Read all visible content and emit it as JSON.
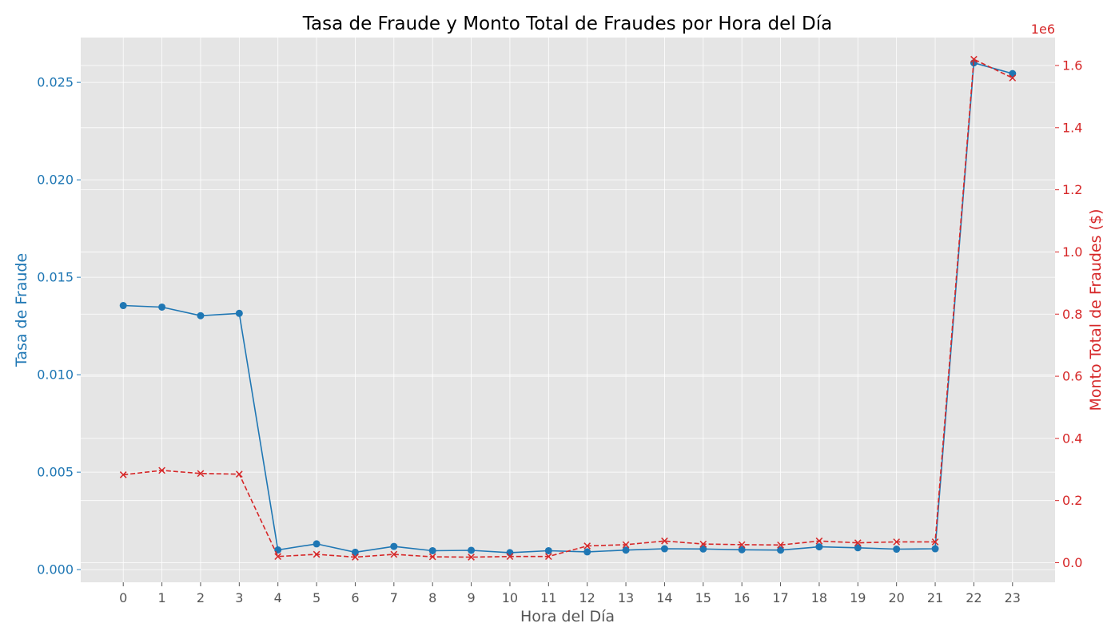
{
  "chart_data": {
    "type": "line",
    "title": "Tasa de Fraude y Monto Total de Fraudes por Hora del Día",
    "xlabel": "Hora del Día",
    "ylabel_left": "Tasa de Fraude",
    "ylabel_right": "Monto Total de Fraudes ($)",
    "right_axis_offset_label": "1e6",
    "x": [
      0,
      1,
      2,
      3,
      4,
      5,
      6,
      7,
      8,
      9,
      10,
      11,
      12,
      13,
      14,
      15,
      16,
      17,
      18,
      19,
      20,
      21,
      22,
      23
    ],
    "x_tick_labels": [
      "0",
      "1",
      "2",
      "3",
      "4",
      "5",
      "6",
      "7",
      "8",
      "9",
      "10",
      "11",
      "12",
      "13",
      "14",
      "15",
      "16",
      "17",
      "18",
      "19",
      "20",
      "21",
      "22",
      "23"
    ],
    "left_ticks": [
      "0.000",
      "0.005",
      "0.010",
      "0.015",
      "0.020",
      "0.025"
    ],
    "right_ticks": [
      "0.0",
      "0.2",
      "0.4",
      "0.6",
      "0.8",
      "1.0",
      "1.2",
      "1.4",
      "1.6"
    ],
    "ylim_left": [
      -0.00065,
      0.0273
    ],
    "ylim_right": [
      -0.063,
      1.69
    ],
    "grid": true,
    "colors": {
      "left": "#1f77b4",
      "right": "#d62728",
      "background": "#e5e5e5",
      "grid": "#ffffff"
    },
    "series": [
      {
        "axis": "left",
        "marker": "circle",
        "linestyle": "solid",
        "values": [
          0.01355,
          0.01347,
          0.01303,
          0.01315,
          0.00101,
          0.00132,
          0.00089,
          0.00119,
          0.00097,
          0.00099,
          0.00087,
          0.00097,
          0.00091,
          0.001,
          0.00107,
          0.00106,
          0.00102,
          0.001,
          0.00117,
          0.00112,
          0.00105,
          0.00107,
          0.026,
          0.02545
        ]
      },
      {
        "axis": "right",
        "marker": "x",
        "linestyle": "dashed",
        "values": [
          0.283,
          0.297,
          0.287,
          0.285,
          0.02,
          0.027,
          0.018,
          0.027,
          0.019,
          0.018,
          0.02,
          0.02,
          0.054,
          0.058,
          0.07,
          0.06,
          0.058,
          0.057,
          0.07,
          0.064,
          0.067,
          0.067,
          1.62,
          1.56
        ]
      }
    ]
  }
}
